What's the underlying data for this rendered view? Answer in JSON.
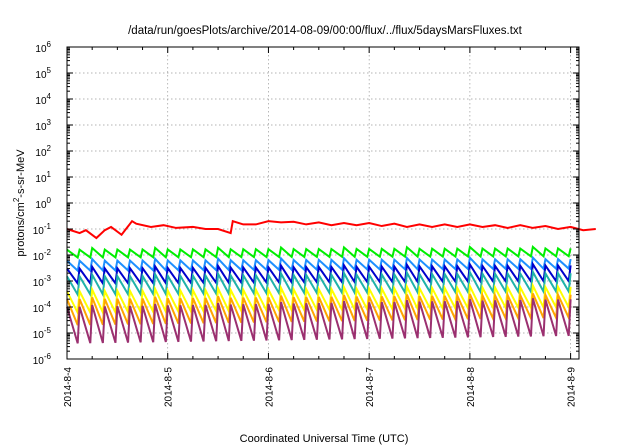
{
  "chart_data": {
    "type": "line",
    "title": "/data/run/goesPlots/archive/2014-08-09/00:00/flux/../flux/5daysMarsFluxes.txt",
    "xlabel": "Coordinated Universal Time (UTC)",
    "ylabel": {
      "prefix": "protons/cm",
      "sup": "2",
      "suffix": "-s-sr-MeV"
    },
    "x_scale": "time",
    "x_ticks": [
      "2014-8-4",
      "2014-8-5",
      "2014-8-6",
      "2014-8-7",
      "2014-8-8",
      "2014-8-9"
    ],
    "xlim": [
      "2014-08-04",
      "2014-08-09 02:00"
    ],
    "y_scale": "log",
    "ylim": [
      1e-06,
      1000000.0
    ],
    "y_ticks": [
      {
        "value": 1e-06,
        "base": "10",
        "exp": "-6"
      },
      {
        "value": 1e-05,
        "base": "10",
        "exp": "-5"
      },
      {
        "value": 0.0001,
        "base": "10",
        "exp": "-4"
      },
      {
        "value": 0.001,
        "base": "10",
        "exp": "-3"
      },
      {
        "value": 0.01,
        "base": "10",
        "exp": "-2"
      },
      {
        "value": 0.1,
        "base": "10",
        "exp": "-1"
      },
      {
        "value": 1.0,
        "base": "10",
        "exp": "0"
      },
      {
        "value": 10.0,
        "base": "10",
        "exp": "1"
      },
      {
        "value": 100.0,
        "base": "10",
        "exp": "2"
      },
      {
        "value": 1000.0,
        "base": "10",
        "exp": "3"
      },
      {
        "value": 10000.0,
        "base": "10",
        "exp": "4"
      },
      {
        "value": 100000.0,
        "base": "10",
        "exp": "5"
      },
      {
        "value": 1000000.0,
        "base": "10",
        "exp": "6"
      }
    ],
    "grid": true,
    "legend": "none",
    "series": [
      {
        "color": "#ff0000",
        "x": [
          "2014-08-04 00:00",
          "2014-08-04 03:00",
          "2014-08-04 04:30",
          "2014-08-04 07:00",
          "2014-08-04 09:00",
          "2014-08-04 10:30",
          "2014-08-04 13:00",
          "2014-08-04 15:30",
          "2014-08-04 16:30",
          "2014-08-04 20:00",
          "2014-08-04 23:00",
          "2014-08-05 02:00",
          "2014-08-05 06:00",
          "2014-08-05 09:00",
          "2014-08-05 12:00",
          "2014-08-05 15:00",
          "2014-08-05 15:30",
          "2014-08-05 18:00",
          "2014-08-05 21:00",
          "2014-08-06 00:00",
          "2014-08-06 03:00",
          "2014-08-06 06:00",
          "2014-08-06 09:00",
          "2014-08-06 12:00",
          "2014-08-06 15:00",
          "2014-08-06 18:00",
          "2014-08-06 21:00",
          "2014-08-07 00:00",
          "2014-08-07 03:00",
          "2014-08-07 06:00",
          "2014-08-07 09:00",
          "2014-08-07 12:00",
          "2014-08-07 15:00",
          "2014-08-07 18:00",
          "2014-08-07 21:00",
          "2014-08-08 00:00",
          "2014-08-08 03:00",
          "2014-08-08 06:00",
          "2014-08-08 09:00",
          "2014-08-08 12:00",
          "2014-08-08 15:00",
          "2014-08-08 18:00",
          "2014-08-08 21:00",
          "2014-08-09 00:00",
          "2014-08-09 03:00",
          "2014-08-09 06:00"
        ],
        "y": [
          0.1,
          0.07,
          0.09,
          0.045,
          0.09,
          0.12,
          0.06,
          0.2,
          0.16,
          0.12,
          0.14,
          0.11,
          0.12,
          0.1,
          0.1,
          0.07,
          0.2,
          0.15,
          0.15,
          0.2,
          0.18,
          0.19,
          0.15,
          0.18,
          0.14,
          0.17,
          0.14,
          0.17,
          0.13,
          0.16,
          0.12,
          0.15,
          0.12,
          0.15,
          0.12,
          0.15,
          0.12,
          0.14,
          0.11,
          0.14,
          0.11,
          0.13,
          0.1,
          0.12,
          0.09,
          0.1
        ]
      },
      {
        "color": "#00ee00",
        "x": [
          "2014-08-04 00:00",
          "2014-08-09 02:00"
        ],
        "y_high": [
          0.016,
          0.018
        ],
        "y_low": [
          0.008,
          0.009
        ]
      },
      {
        "color": "#1e90ff",
        "x": [
          "2014-08-04 00:00",
          "2014-08-09 02:00"
        ],
        "y_high": [
          0.006,
          0.007
        ],
        "y_low": [
          0.0025,
          0.003
        ]
      },
      {
        "color": "#0000cd",
        "x": [
          "2014-08-04 00:00",
          "2014-08-09 02:00"
        ],
        "y_high": [
          0.003,
          0.004
        ],
        "y_low": [
          0.0008,
          0.001
        ]
      },
      {
        "color": "#20b2aa",
        "x": [
          "2014-08-04 00:00",
          "2014-08-09 02:00"
        ],
        "y_high": [
          0.0015,
          0.002
        ],
        "y_low": [
          0.0003,
          0.0004
        ]
      },
      {
        "color": "#ffff00",
        "x": [
          "2014-08-04 00:00",
          "2014-08-09 02:00"
        ],
        "y_high": [
          0.0004,
          0.0006
        ],
        "y_low": [
          6e-05,
          0.0001
        ]
      },
      {
        "color": "#ffa500",
        "x": [
          "2014-08-04 00:00",
          "2014-08-09 02:00"
        ],
        "y_high": [
          0.0002,
          0.0003
        ],
        "y_low": [
          2e-05,
          4e-05
        ]
      },
      {
        "color": "#9b3070",
        "x": [
          "2014-08-04 00:00",
          "2014-08-09 02:00"
        ],
        "y_high": [
          0.0001,
          0.0002
        ],
        "y_low": [
          4e-06,
          8e-06
        ]
      }
    ],
    "cycle_hours": 3
  }
}
